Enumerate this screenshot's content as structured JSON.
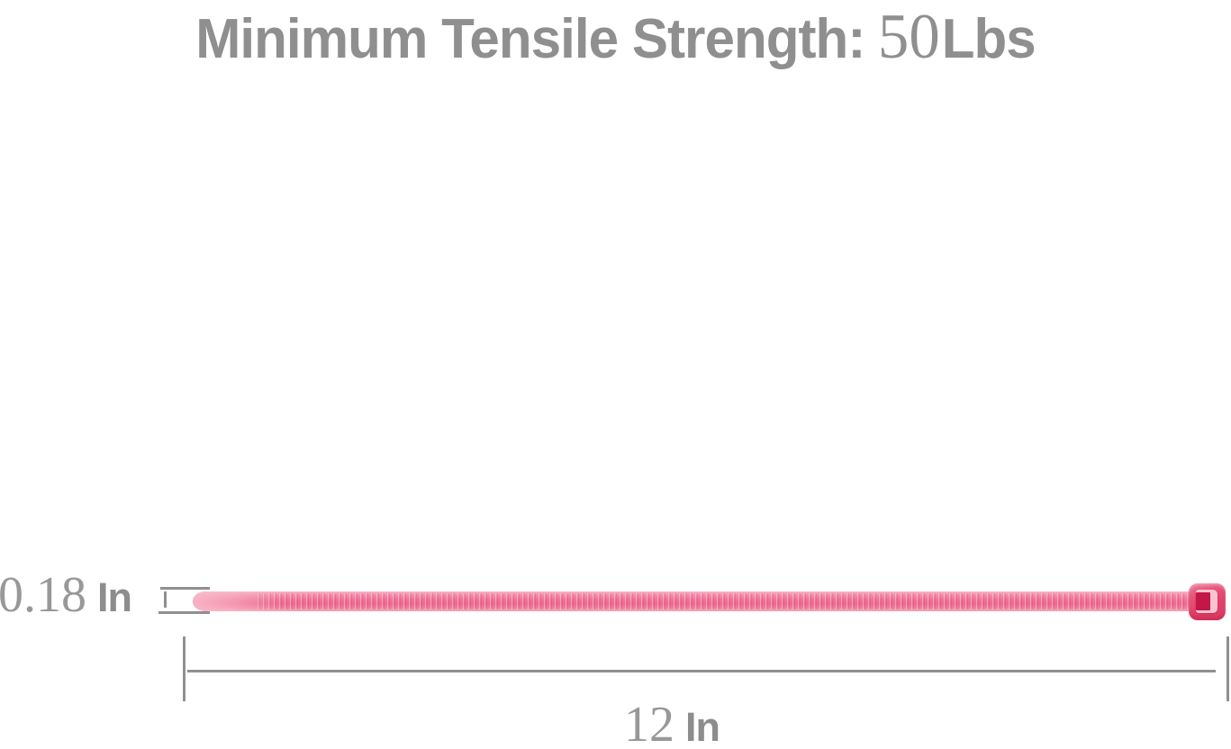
{
  "title": {
    "label": "Minimum Tensile Strength:",
    "value": "50",
    "unit": "Lbs"
  },
  "dimensions": {
    "thickness": {
      "value": "0.18",
      "unit": "In"
    },
    "length": {
      "value": "12",
      "unit": "In"
    }
  },
  "figure": {
    "name": "pink-nylon-cable-tie"
  },
  "colors": {
    "title-gray": "#8f8f8f",
    "dim-gray": "#989898",
    "dim-unit-gray": "#8d8d8d",
    "line-gray": "#909090",
    "strap-pink": "#ee7296",
    "head-pink": "#e33e67",
    "head-dark": "#c21747",
    "slot-light": "#f7c3cf"
  }
}
